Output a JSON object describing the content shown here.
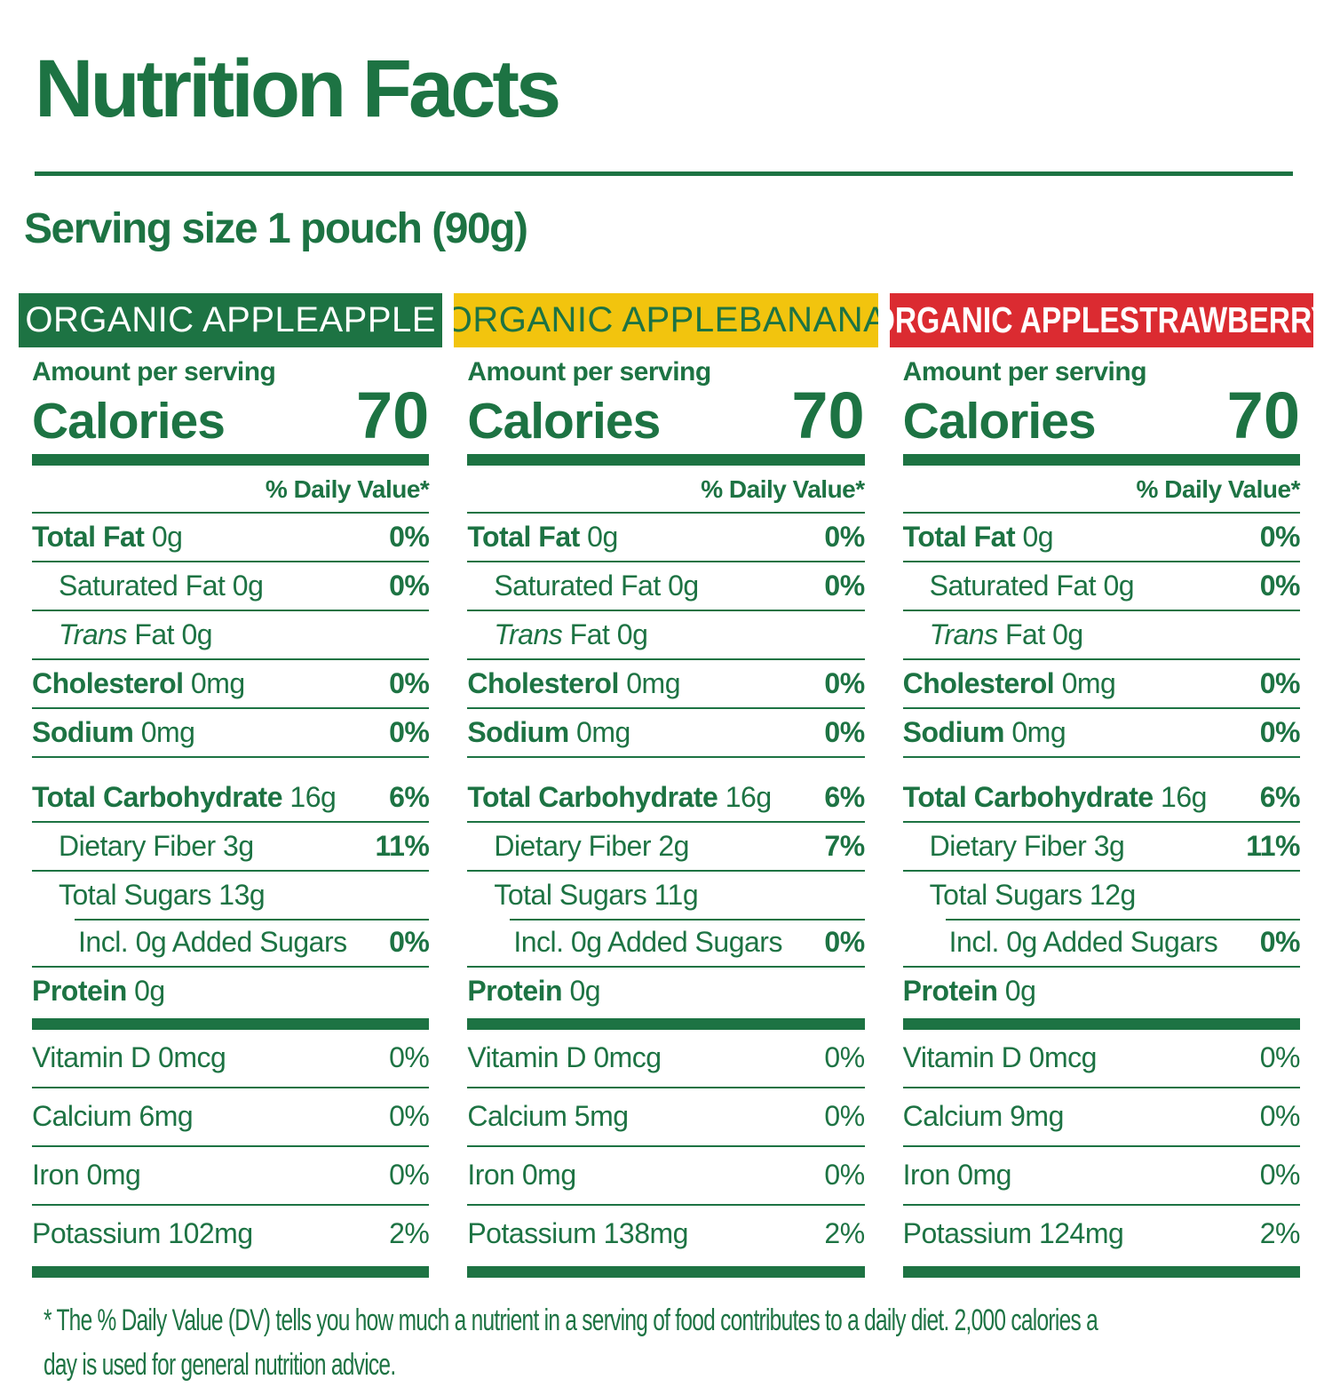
{
  "page": {
    "title": "Nutrition Facts",
    "serving_label": "Serving size 1 pouch (90g)"
  },
  "labels": {
    "amount_per_serving": "Amount per serving",
    "calories": "Calories",
    "daily_value": "% Daily Value*"
  },
  "footnote": {
    "line1": "* The % Daily Value (DV) tells you how much a nutrient in a serving of food contributes to a daily diet. 2,000 calories a",
    "line2": "day is used for general nutrition advice."
  },
  "colors": {
    "green": "#1d7343",
    "yellow": "#f2c40e",
    "red": "#db2b31",
    "white": "#ffffff"
  },
  "columns": [
    {
      "name": "ORGANIC APPLEAPPLE",
      "header_bg": "#1d7343",
      "header_fg": "#ffffff",
      "header_variant": "normal",
      "calories": "70",
      "nutrients": [
        {
          "parts": [
            {
              "text": "Total Fat",
              "style": "b"
            },
            {
              "text": " 0g",
              "style": "p"
            }
          ],
          "value": "0%",
          "indent": 0,
          "section": "main",
          "border": "full"
        },
        {
          "parts": [
            {
              "text": "Saturated Fat 0g",
              "style": "p"
            }
          ],
          "value": "0%",
          "indent": 1,
          "section": "main",
          "border": "full"
        },
        {
          "parts": [
            {
              "text": "Trans",
              "style": "i"
            },
            {
              "text": " Fat 0g",
              "style": "p"
            }
          ],
          "value": "",
          "indent": 1,
          "section": "main",
          "border": "full"
        },
        {
          "parts": [
            {
              "text": "Cholesterol",
              "style": "b"
            },
            {
              "text": " 0mg",
              "style": "p"
            }
          ],
          "value": "0%",
          "indent": 0,
          "section": "main",
          "border": "full"
        },
        {
          "parts": [
            {
              "text": "Sodium",
              "style": "b"
            },
            {
              "text": " 0mg",
              "style": "p"
            }
          ],
          "value": "0%",
          "indent": 0,
          "section": "main",
          "border": "full"
        },
        {
          "parts": [
            {
              "text": "Total Carbohydrate",
              "style": "b"
            },
            {
              "text": " 16g",
              "style": "p"
            }
          ],
          "value": "6%",
          "indent": 0,
          "section": "main",
          "border": "full",
          "gap_top": true
        },
        {
          "parts": [
            {
              "text": "Dietary Fiber 3g",
              "style": "p"
            }
          ],
          "value": "11%",
          "indent": 1,
          "section": "main",
          "border": "full"
        },
        {
          "parts": [
            {
              "text": "Total Sugars 13g",
              "style": "p"
            }
          ],
          "value": "",
          "indent": 1,
          "section": "main",
          "border": "none"
        },
        {
          "parts": [
            {
              "text": "Incl. 0g Added Sugars",
              "style": "p"
            }
          ],
          "value": "0%",
          "indent": 2,
          "section": "main",
          "border": "full",
          "partial_top": true
        },
        {
          "parts": [
            {
              "text": "Protein",
              "style": "b"
            },
            {
              "text": " 0g",
              "style": "p"
            }
          ],
          "value": "",
          "indent": 0,
          "section": "main",
          "border": "none",
          "bar_after": true
        },
        {
          "parts": [
            {
              "text": "Vitamin D 0mcg",
              "style": "p"
            }
          ],
          "value": "0%",
          "indent": 0,
          "section": "vitamin",
          "border": "full"
        },
        {
          "parts": [
            {
              "text": "Calcium 6mg",
              "style": "p"
            }
          ],
          "value": "0%",
          "indent": 0,
          "section": "vitamin",
          "border": "full"
        },
        {
          "parts": [
            {
              "text": "Iron 0mg",
              "style": "p"
            }
          ],
          "value": "0%",
          "indent": 0,
          "section": "vitamin",
          "border": "full"
        },
        {
          "parts": [
            {
              "text": "Potassium 102mg",
              "style": "p"
            }
          ],
          "value": "2%",
          "indent": 0,
          "section": "vitamin",
          "border": "none",
          "bar_after": true
        }
      ]
    },
    {
      "name": "ORGANIC APPLEBANANA",
      "header_bg": "#f2c40e",
      "header_fg": "#1d7343",
      "header_variant": "normal",
      "calories": "70",
      "nutrients": [
        {
          "parts": [
            {
              "text": "Total Fat",
              "style": "b"
            },
            {
              "text": " 0g",
              "style": "p"
            }
          ],
          "value": "0%",
          "indent": 0,
          "section": "main",
          "border": "full"
        },
        {
          "parts": [
            {
              "text": "Saturated Fat 0g",
              "style": "p"
            }
          ],
          "value": "0%",
          "indent": 1,
          "section": "main",
          "border": "full"
        },
        {
          "parts": [
            {
              "text": "Trans",
              "style": "i"
            },
            {
              "text": " Fat 0g",
              "style": "p"
            }
          ],
          "value": "",
          "indent": 1,
          "section": "main",
          "border": "full"
        },
        {
          "parts": [
            {
              "text": "Cholesterol",
              "style": "b"
            },
            {
              "text": " 0mg",
              "style": "p"
            }
          ],
          "value": "0%",
          "indent": 0,
          "section": "main",
          "border": "full"
        },
        {
          "parts": [
            {
              "text": "Sodium",
              "style": "b"
            },
            {
              "text": " 0mg",
              "style": "p"
            }
          ],
          "value": "0%",
          "indent": 0,
          "section": "main",
          "border": "full"
        },
        {
          "parts": [
            {
              "text": "Total Carbohydrate",
              "style": "b"
            },
            {
              "text": " 16g",
              "style": "p"
            }
          ],
          "value": "6%",
          "indent": 0,
          "section": "main",
          "border": "full",
          "gap_top": true
        },
        {
          "parts": [
            {
              "text": "Dietary Fiber 2g",
              "style": "p"
            }
          ],
          "value": "7%",
          "indent": 1,
          "section": "main",
          "border": "full"
        },
        {
          "parts": [
            {
              "text": "Total Sugars 11g",
              "style": "p"
            }
          ],
          "value": "",
          "indent": 1,
          "section": "main",
          "border": "none"
        },
        {
          "parts": [
            {
              "text": "Incl. 0g Added Sugars",
              "style": "p"
            }
          ],
          "value": "0%",
          "indent": 2,
          "section": "main",
          "border": "full",
          "partial_top": true
        },
        {
          "parts": [
            {
              "text": "Protein",
              "style": "b"
            },
            {
              "text": " 0g",
              "style": "p"
            }
          ],
          "value": "",
          "indent": 0,
          "section": "main",
          "border": "none",
          "bar_after": true
        },
        {
          "parts": [
            {
              "text": "Vitamin D 0mcg",
              "style": "p"
            }
          ],
          "value": "0%",
          "indent": 0,
          "section": "vitamin",
          "border": "full"
        },
        {
          "parts": [
            {
              "text": "Calcium 5mg",
              "style": "p"
            }
          ],
          "value": "0%",
          "indent": 0,
          "section": "vitamin",
          "border": "full"
        },
        {
          "parts": [
            {
              "text": "Iron 0mg",
              "style": "p"
            }
          ],
          "value": "0%",
          "indent": 0,
          "section": "vitamin",
          "border": "full"
        },
        {
          "parts": [
            {
              "text": "Potassium 138mg",
              "style": "p"
            }
          ],
          "value": "2%",
          "indent": 0,
          "section": "vitamin",
          "border": "none",
          "bar_after": true
        }
      ]
    },
    {
      "name": "ORGANIC APPLESTRAWBERRY",
      "header_bg": "#db2b31",
      "header_fg": "#ffffff",
      "header_variant": "condensed",
      "calories": "70",
      "nutrients": [
        {
          "parts": [
            {
              "text": "Total Fat",
              "style": "b"
            },
            {
              "text": " 0g",
              "style": "p"
            }
          ],
          "value": "0%",
          "indent": 0,
          "section": "main",
          "border": "full"
        },
        {
          "parts": [
            {
              "text": "Saturated Fat 0g",
              "style": "p"
            }
          ],
          "value": "0%",
          "indent": 1,
          "section": "main",
          "border": "full"
        },
        {
          "parts": [
            {
              "text": "Trans",
              "style": "i"
            },
            {
              "text": " Fat 0g",
              "style": "p"
            }
          ],
          "value": "",
          "indent": 1,
          "section": "main",
          "border": "full"
        },
        {
          "parts": [
            {
              "text": "Cholesterol",
              "style": "b"
            },
            {
              "text": " 0mg",
              "style": "p"
            }
          ],
          "value": "0%",
          "indent": 0,
          "section": "main",
          "border": "full"
        },
        {
          "parts": [
            {
              "text": "Sodium",
              "style": "b"
            },
            {
              "text": " 0mg",
              "style": "p"
            }
          ],
          "value": "0%",
          "indent": 0,
          "section": "main",
          "border": "full"
        },
        {
          "parts": [
            {
              "text": "Total Carbohydrate",
              "style": "b"
            },
            {
              "text": " 16g",
              "style": "p"
            }
          ],
          "value": "6%",
          "indent": 0,
          "section": "main",
          "border": "full",
          "gap_top": true
        },
        {
          "parts": [
            {
              "text": "Dietary Fiber 3g",
              "style": "p"
            }
          ],
          "value": "11%",
          "indent": 1,
          "section": "main",
          "border": "full"
        },
        {
          "parts": [
            {
              "text": "Total Sugars 12g",
              "style": "p"
            }
          ],
          "value": "",
          "indent": 1,
          "section": "main",
          "border": "none"
        },
        {
          "parts": [
            {
              "text": "Incl. 0g Added Sugars",
              "style": "p"
            }
          ],
          "value": "0%",
          "indent": 2,
          "section": "main",
          "border": "full",
          "partial_top": true
        },
        {
          "parts": [
            {
              "text": "Protein",
              "style": "b"
            },
            {
              "text": " 0g",
              "style": "p"
            }
          ],
          "value": "",
          "indent": 0,
          "section": "main",
          "border": "none",
          "bar_after": true
        },
        {
          "parts": [
            {
              "text": "Vitamin D 0mcg",
              "style": "p"
            }
          ],
          "value": "0%",
          "indent": 0,
          "section": "vitamin",
          "border": "full"
        },
        {
          "parts": [
            {
              "text": "Calcium 9mg",
              "style": "p"
            }
          ],
          "value": "0%",
          "indent": 0,
          "section": "vitamin",
          "border": "full"
        },
        {
          "parts": [
            {
              "text": "Iron 0mg",
              "style": "p"
            }
          ],
          "value": "0%",
          "indent": 0,
          "section": "vitamin",
          "border": "full"
        },
        {
          "parts": [
            {
              "text": "Potassium 124mg",
              "style": "p"
            }
          ],
          "value": "2%",
          "indent": 0,
          "section": "vitamin",
          "border": "none",
          "bar_after": true
        }
      ]
    }
  ]
}
